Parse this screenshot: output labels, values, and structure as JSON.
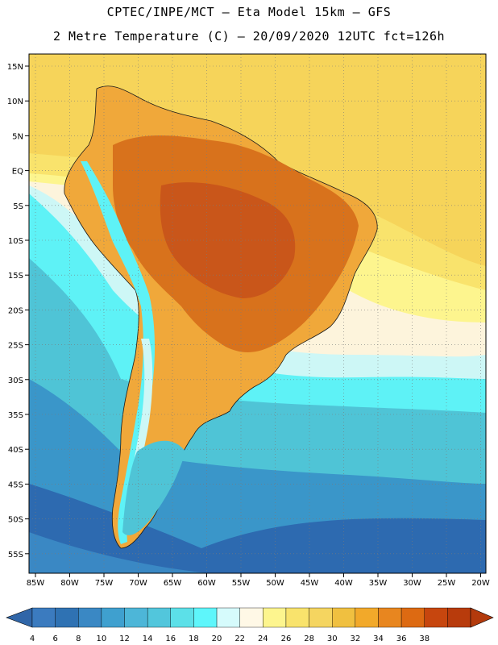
{
  "header": {
    "line1": "CPTEC/INPE/MCT –  Eta Model 15km – GFS",
    "line2": "2 Metre Temperature (C) – 20/09/2020 12UTC fct=126h"
  },
  "axes": {
    "lat_labels": [
      "15N",
      "10N",
      "5N",
      "EQ",
      "5S",
      "10S",
      "15S",
      "20S",
      "25S",
      "30S",
      "35S",
      "40S",
      "45S",
      "50S",
      "55S"
    ],
    "lon_labels": [
      "85W",
      "80W",
      "75W",
      "70W",
      "65W",
      "60W",
      "55W",
      "50W",
      "45W",
      "40W",
      "35W",
      "30W",
      "25W",
      "20W"
    ]
  },
  "colorbar": {
    "ticks": [
      "4",
      "6",
      "8",
      "10",
      "12",
      "14",
      "16",
      "18",
      "20",
      "22",
      "24",
      "26",
      "28",
      "30",
      "32",
      "34",
      "36",
      "38"
    ],
    "colors": [
      "#3b7bbf",
      "#2f72b3",
      "#3a88c4",
      "#3fa0cf",
      "#4db6d8",
      "#52c6dc",
      "#5ce0e8",
      "#5ef6fb",
      "#d6fbfc",
      "#fff8e6",
      "#fdf58e",
      "#f9e36c",
      "#f5d560",
      "#f0c040",
      "#f2a92a",
      "#e8861f",
      "#dd6a12",
      "#c7460e",
      "#b83b0c"
    ],
    "under_color": "#3066a8",
    "over_color": "#b33a0c"
  },
  "colors": {
    "ocean_deep": "#2d6ab0",
    "ocean_mid": "#3a96c9",
    "ocean_cool": "#4fc4d6",
    "ocean_cyan": "#5ef2f6",
    "ocean_pale": "#cdf7f6",
    "ocean_cream": "#fdf4dc",
    "ocean_warm": "#f6d45a",
    "land_warm": "#f0a83a",
    "land_hot": "#d8721c",
    "land_hottest": "#c9561a"
  }
}
